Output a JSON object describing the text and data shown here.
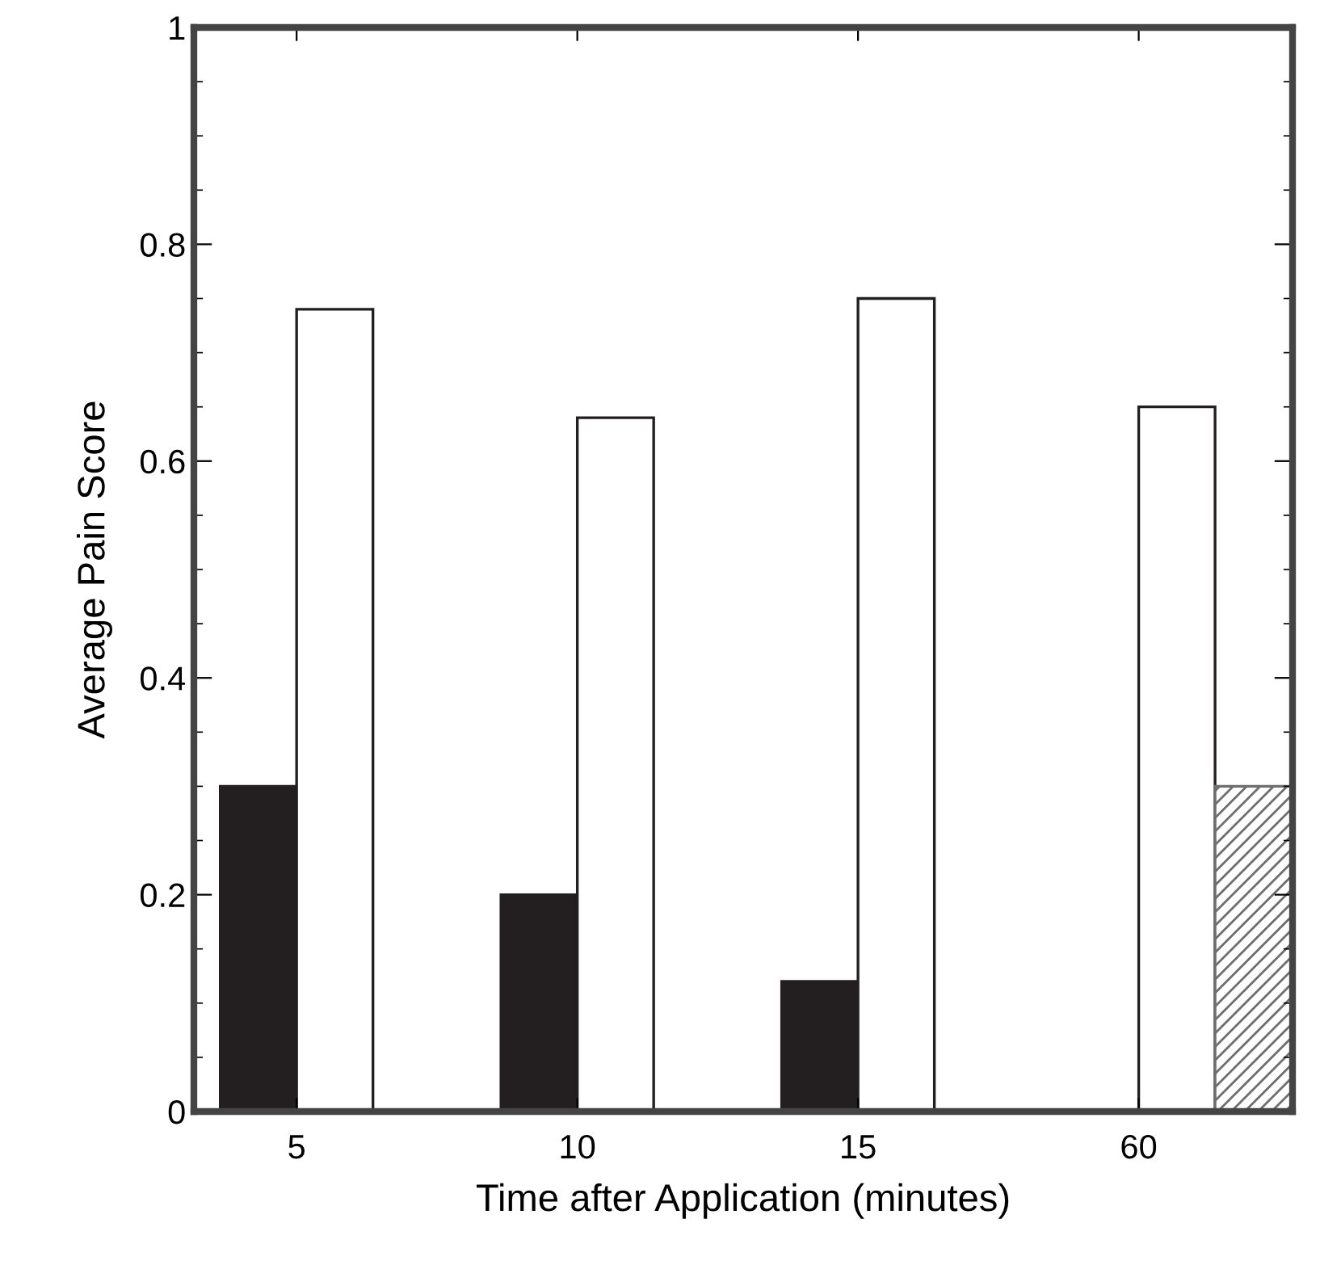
{
  "chart_data": {
    "type": "bar",
    "xlabel": "Time after Application (minutes)",
    "ylabel": "Average Pain Score",
    "categories": [
      "5",
      "10",
      "15",
      "60"
    ],
    "series": [
      {
        "color": "#231f20",
        "values": [
          0.3,
          0.2,
          0.12,
          null
        ]
      },
      {
        "color": "#ffffff",
        "values": [
          0.74,
          0.64,
          0.75,
          0.65
        ]
      },
      {
        "color": "#6e6e6e",
        "values": [
          null,
          null,
          null,
          0.3
        ]
      }
    ],
    "ylim": [
      0,
      1
    ],
    "yticks": [
      0,
      0.2,
      0.4,
      0.6,
      0.8,
      1
    ],
    "grid": false,
    "legend": false
  }
}
